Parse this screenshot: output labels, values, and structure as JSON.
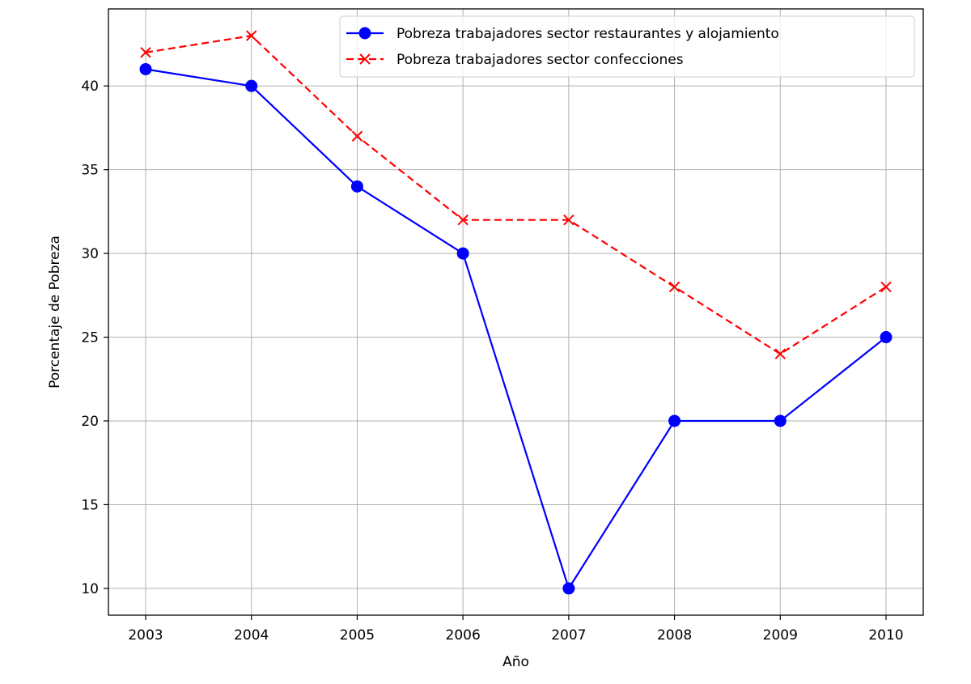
{
  "chart_data": {
    "type": "line",
    "title": "",
    "xlabel": "Año",
    "ylabel": "Porcentaje de Pobreza",
    "categories": [
      "2003",
      "2004",
      "2005",
      "2006",
      "2007",
      "2008",
      "2009",
      "2010"
    ],
    "x_ticks": [
      "2003",
      "2004",
      "2005",
      "2006",
      "2007",
      "2008",
      "2009",
      "2010"
    ],
    "y_ticks": [
      "10",
      "15",
      "20",
      "25",
      "30",
      "35",
      "40"
    ],
    "ylim": [
      8.4,
      44.6
    ],
    "grid": true,
    "legend_position": "top-right",
    "series": [
      {
        "name": "Pobreza trabajadores sector restaurantes y alojamiento",
        "values": [
          41,
          40,
          34,
          30,
          10,
          20,
          20,
          25
        ],
        "color": "#0000ff",
        "line_style": "solid",
        "marker": "circle"
      },
      {
        "name": "Pobreza trabajadores sector confecciones",
        "values": [
          42,
          43,
          37,
          32,
          32,
          28,
          24,
          28
        ],
        "color": "#ff0000",
        "line_style": "dashed",
        "marker": "x"
      }
    ]
  }
}
